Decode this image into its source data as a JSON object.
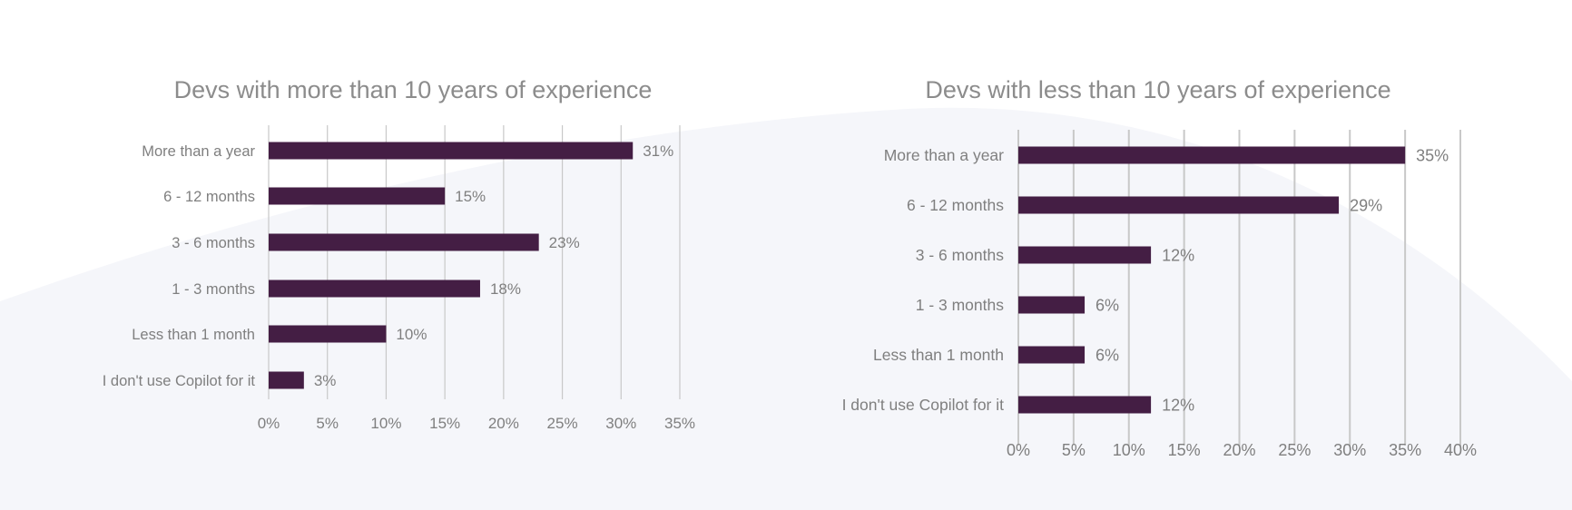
{
  "colors": {
    "bar": "#441e44",
    "text": "#7f7f7f",
    "grid": "#c8c8c8",
    "background_shape": "#f5f6fa"
  },
  "chart_data": [
    {
      "type": "bar",
      "orientation": "horizontal",
      "title": "Devs with more than 10 years of experience",
      "categories": [
        "More than a year",
        "6 - 12 months",
        "3 - 6 months",
        "1 - 3 months",
        "Less than 1 month",
        "I don't use Copilot for it"
      ],
      "values": [
        31,
        15,
        23,
        18,
        10,
        3
      ],
      "data_labels": [
        "31%",
        "15%",
        "23%",
        "18%",
        "10%",
        "3%"
      ],
      "xlim": [
        0,
        35
      ],
      "xticks": [
        0,
        5,
        10,
        15,
        20,
        25,
        30,
        35
      ],
      "xtick_labels": [
        "0%",
        "5%",
        "10%",
        "15%",
        "20%",
        "25%",
        "30%",
        "35%"
      ],
      "grid": true,
      "legend": "none"
    },
    {
      "type": "bar",
      "orientation": "horizontal",
      "title": "Devs with less than 10 years of experience",
      "categories": [
        "More than a year",
        "6 - 12 months",
        "3 - 6 months",
        "1 - 3 months",
        "Less than 1 month",
        "I don't use Copilot for it"
      ],
      "values": [
        35,
        29,
        12,
        6,
        6,
        12
      ],
      "data_labels": [
        "35%",
        "29%",
        "12%",
        "6%",
        "6%",
        "12%"
      ],
      "xlim": [
        0,
        40
      ],
      "xticks": [
        0,
        5,
        10,
        15,
        20,
        25,
        30,
        35,
        40
      ],
      "xtick_labels": [
        "0%",
        "5%",
        "10%",
        "15%",
        "20%",
        "25%",
        "30%",
        "35%",
        "40%"
      ],
      "grid": true,
      "legend": "none"
    }
  ]
}
